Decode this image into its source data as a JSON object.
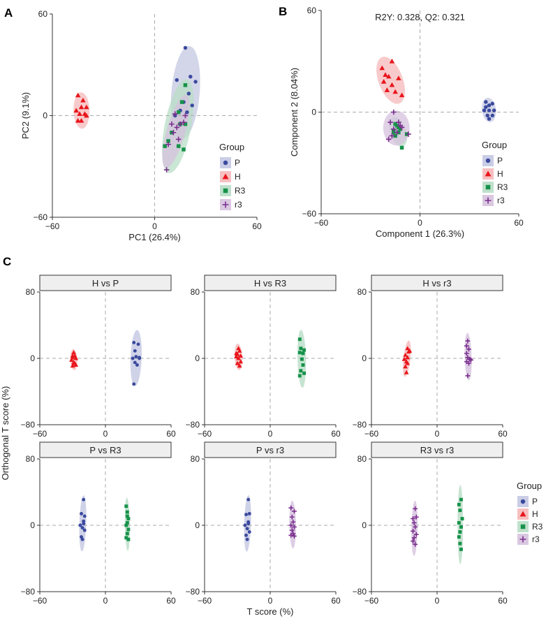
{
  "panel_labels": {
    "a": "A",
    "b": "B",
    "c": "C"
  },
  "colors": {
    "P": "#3B4A9E",
    "P_fill": "#C4C8E2",
    "H": "#E8151B",
    "H_fill": "#F6B8B9",
    "R3": "#16924A",
    "R3_fill": "#B8DDC6",
    "r3": "#7A2E8E",
    "r3_fill": "#D6C2DE"
  },
  "legend": {
    "title": "Group",
    "items": [
      {
        "key": "P",
        "label": "P",
        "shape": "circle-icon"
      },
      {
        "key": "H",
        "label": "H",
        "shape": "triangle-icon"
      },
      {
        "key": "R3",
        "label": "R3",
        "shape": "square-icon"
      },
      {
        "key": "r3",
        "label": "r3",
        "shape": "plus-icon"
      }
    ]
  },
  "chart_data": [
    {
      "id": "A",
      "type": "scatter",
      "title": "",
      "xlabel": "PC1 (26.4%)",
      "ylabel": "PC2 (9.1%)",
      "xlim": [
        -60,
        60
      ],
      "ylim": [
        -60,
        60
      ],
      "xticks": [
        -60,
        0,
        60
      ],
      "yticks": [
        -60,
        0,
        60
      ],
      "series": [
        {
          "name": "P",
          "points": [
            [
              18,
              40
            ],
            [
              21,
              23
            ],
            [
              24,
              20
            ],
            [
              13,
              21
            ],
            [
              20,
              13
            ],
            [
              17,
              8
            ],
            [
              22,
              6
            ],
            [
              15,
              3
            ],
            [
              19,
              2
            ],
            [
              12,
              0
            ]
          ]
        },
        {
          "name": "H",
          "points": [
            [
              -45,
              12
            ],
            [
              -42,
              9
            ],
            [
              -43,
              5
            ],
            [
              -40,
              5
            ],
            [
              -46,
              3
            ],
            [
              -44,
              1
            ],
            [
              -41,
              1
            ],
            [
              -45,
              -3
            ],
            [
              -43,
              -3
            ],
            [
              -40,
              0
            ]
          ]
        },
        {
          "name": "R3",
          "points": [
            [
              18,
              18
            ],
            [
              16,
              8
            ],
            [
              14,
              2
            ],
            [
              15,
              -5
            ],
            [
              10,
              -10
            ],
            [
              8,
              -15
            ],
            [
              6,
              -18
            ],
            [
              14,
              -18
            ],
            [
              17,
              -20
            ],
            [
              18,
              -5
            ]
          ]
        },
        {
          "name": "r3",
          "points": [
            [
              12,
              1
            ],
            [
              18,
              0
            ],
            [
              15,
              -5
            ],
            [
              13,
              -7
            ],
            [
              11,
              -10
            ],
            [
              14,
              -14
            ],
            [
              8,
              -17
            ],
            [
              7,
              -32
            ],
            [
              17,
              -4
            ],
            [
              10,
              -5
            ]
          ]
        }
      ]
    },
    {
      "id": "B",
      "type": "scatter",
      "title": "R2Y: 0.328,  Q2: 0.321",
      "xlabel": "Component 1 (26.3%)",
      "ylabel": "Component 2 (8.04%)",
      "xlim": [
        -60,
        60
      ],
      "ylim": [
        -60,
        60
      ],
      "xticks": [
        -60,
        0,
        60
      ],
      "yticks": [
        -60,
        0,
        60
      ],
      "series": [
        {
          "name": "P",
          "points": [
            [
              40,
              6
            ],
            [
              42,
              4
            ],
            [
              44,
              5
            ],
            [
              39,
              1
            ],
            [
              42,
              1
            ],
            [
              45,
              1
            ],
            [
              41,
              -2
            ],
            [
              44,
              -2
            ],
            [
              42,
              -4
            ],
            [
              40,
              3
            ]
          ]
        },
        {
          "name": "H",
          "points": [
            [
              -23,
              26
            ],
            [
              -17,
              30
            ],
            [
              -19,
              21
            ],
            [
              -13,
              20
            ],
            [
              -22,
              18
            ],
            [
              -20,
              13
            ],
            [
              -17,
              16
            ],
            [
              -15,
              12
            ],
            [
              -11,
              10
            ],
            [
              -21,
              22
            ]
          ]
        },
        {
          "name": "R3",
          "points": [
            [
              -15,
              -7
            ],
            [
              -13,
              -9
            ],
            [
              -16,
              -11
            ],
            [
              -13,
              -12
            ],
            [
              -8,
              -13
            ],
            [
              -15,
              -14
            ],
            [
              -11,
              -21
            ],
            [
              -14,
              -8
            ],
            [
              -12,
              -10
            ],
            [
              -16,
              -12
            ]
          ]
        },
        {
          "name": "r3",
          "points": [
            [
              -16,
              0
            ],
            [
              -18,
              -6
            ],
            [
              -13,
              -6
            ],
            [
              -11,
              -9
            ],
            [
              -16,
              -10
            ],
            [
              -17,
              -14
            ],
            [
              -7,
              -13
            ],
            [
              -14,
              -12
            ],
            [
              -19,
              -16
            ],
            [
              -12,
              -8
            ]
          ]
        }
      ]
    },
    {
      "id": "C-H-vs-P",
      "type": "scatter",
      "title": "H vs P",
      "xlabel": "T score (%)",
      "ylabel": "Orthogonal T score (%)",
      "xlim": [
        -60,
        60
      ],
      "ylim": [
        -80,
        80
      ],
      "xticks": [
        -60,
        0,
        60
      ],
      "yticks": [
        -80,
        0,
        80
      ],
      "series": [
        {
          "name": "H",
          "points": [
            [
              -29,
              7
            ],
            [
              -28,
              3
            ],
            [
              -30,
              1
            ],
            [
              -27,
              0
            ],
            [
              -31,
              -2
            ],
            [
              -29,
              -5
            ],
            [
              -27,
              -8
            ],
            [
              -30,
              -9
            ],
            [
              -28,
              -6
            ],
            [
              -30,
              3
            ]
          ]
        },
        {
          "name": "P",
          "points": [
            [
              26,
              19
            ],
            [
              30,
              17
            ],
            [
              27,
              9
            ],
            [
              28,
              2
            ],
            [
              25,
              0
            ],
            [
              31,
              0
            ],
            [
              27,
              -5
            ],
            [
              29,
              -8
            ],
            [
              26,
              -31
            ],
            [
              31,
              1
            ]
          ]
        }
      ]
    },
    {
      "id": "C-H-vs-R3",
      "type": "scatter",
      "title": "H vs R3",
      "xlabel": "T score (%)",
      "ylabel": "Orthogonal T score (%)",
      "xlim": [
        -60,
        60
      ],
      "ylim": [
        -80,
        80
      ],
      "xticks": [
        -60,
        0,
        60
      ],
      "yticks": [
        -80,
        0,
        80
      ],
      "series": [
        {
          "name": "H",
          "points": [
            [
              -29,
              12
            ],
            [
              -28,
              9
            ],
            [
              -30,
              5
            ],
            [
              -27,
              3
            ],
            [
              -31,
              2
            ],
            [
              -29,
              0
            ],
            [
              -27,
              -4
            ],
            [
              -30,
              -6
            ],
            [
              -28,
              -9
            ],
            [
              -31,
              6
            ]
          ]
        },
        {
          "name": "R3",
          "points": [
            [
              27,
              23
            ],
            [
              31,
              10
            ],
            [
              28,
              12
            ],
            [
              30,
              6
            ],
            [
              27,
              7
            ],
            [
              29,
              -1
            ],
            [
              30,
              -8
            ],
            [
              28,
              -15
            ],
            [
              27,
              -21
            ],
            [
              31,
              -18
            ]
          ]
        }
      ]
    },
    {
      "id": "C-H-vs-r3",
      "type": "scatter",
      "title": "H vs r3",
      "xlabel": "T score (%)",
      "ylabel": "Orthogonal T score (%)",
      "xlim": [
        -60,
        60
      ],
      "ylim": [
        -80,
        80
      ],
      "xticks": [
        -60,
        0,
        60
      ],
      "yticks": [
        -80,
        0,
        80
      ],
      "series": [
        {
          "name": "H",
          "points": [
            [
              -27,
              12
            ],
            [
              -26,
              8
            ],
            [
              -29,
              4
            ],
            [
              -27,
              1
            ],
            [
              -30,
              -1
            ],
            [
              -28,
              -4
            ],
            [
              -29,
              -10
            ],
            [
              -28,
              -17
            ],
            [
              -27,
              -6
            ],
            [
              -25,
              9
            ]
          ]
        },
        {
          "name": "r3",
          "points": [
            [
              28,
              21
            ],
            [
              27,
              15
            ],
            [
              29,
              11
            ],
            [
              27,
              6
            ],
            [
              28,
              1
            ],
            [
              30,
              -1
            ],
            [
              27,
              -4
            ],
            [
              29,
              -6
            ],
            [
              28,
              -21
            ],
            [
              31,
              -2
            ]
          ]
        }
      ]
    },
    {
      "id": "C-P-vs-R3",
      "type": "scatter",
      "title": "P vs R3",
      "xlabel": "T score (%)",
      "ylabel": "Orthogonal T score (%)",
      "xlim": [
        -60,
        60
      ],
      "ylim": [
        -80,
        80
      ],
      "xticks": [
        -60,
        0,
        60
      ],
      "yticks": [
        -80,
        0,
        80
      ],
      "series": [
        {
          "name": "P",
          "points": [
            [
              -20,
              31
            ],
            [
              -22,
              14
            ],
            [
              -19,
              11
            ],
            [
              -20,
              2
            ],
            [
              -23,
              0
            ],
            [
              -21,
              -3
            ],
            [
              -19,
              -6
            ],
            [
              -22,
              -14
            ],
            [
              -21,
              -17
            ],
            [
              -20,
              5
            ]
          ]
        },
        {
          "name": "R3",
          "points": [
            [
              19,
              23
            ],
            [
              20,
              16
            ],
            [
              21,
              8
            ],
            [
              20,
              3
            ],
            [
              19,
              0
            ],
            [
              21,
              -5
            ],
            [
              20,
              -10
            ],
            [
              19,
              -15
            ],
            [
              21,
              -17
            ],
            [
              20,
              11
            ]
          ]
        }
      ]
    },
    {
      "id": "C-P-vs-r3",
      "type": "scatter",
      "title": "P vs r3",
      "xlabel": "T score (%)",
      "ylabel": "Orthogonal T score (%)",
      "xlim": [
        -60,
        60
      ],
      "ylim": [
        -80,
        80
      ],
      "xticks": [
        -60,
        0,
        60
      ],
      "yticks": [
        -80,
        0,
        80
      ],
      "series": [
        {
          "name": "P",
          "points": [
            [
              -20,
              31
            ],
            [
              -19,
              14
            ],
            [
              -22,
              13
            ],
            [
              -20,
              4
            ],
            [
              -23,
              0
            ],
            [
              -21,
              -4
            ],
            [
              -19,
              -8
            ],
            [
              -22,
              -12
            ],
            [
              -21,
              -17
            ],
            [
              -20,
              2
            ]
          ]
        },
        {
          "name": "r3",
          "points": [
            [
              19,
              21
            ],
            [
              22,
              17
            ],
            [
              20,
              10
            ],
            [
              21,
              4
            ],
            [
              19,
              0
            ],
            [
              22,
              -2
            ],
            [
              20,
              -6
            ],
            [
              21,
              -10
            ],
            [
              19,
              -12
            ],
            [
              22,
              -13
            ]
          ]
        }
      ]
    },
    {
      "id": "C-R3-vs-r3",
      "type": "scatter",
      "title": "R3 vs r3",
      "xlabel": "T score (%)",
      "ylabel": "Orthogonal T score (%)",
      "xlim": [
        -60,
        60
      ],
      "ylim": [
        -80,
        80
      ],
      "xticks": [
        -60,
        0,
        60
      ],
      "yticks": [
        -80,
        0,
        80
      ],
      "series": [
        {
          "name": "r3",
          "points": [
            [
              -20,
              20
            ],
            [
              -22,
              8
            ],
            [
              -19,
              10
            ],
            [
              -21,
              3
            ],
            [
              -20,
              -2
            ],
            [
              -22,
              -7
            ],
            [
              -19,
              -11
            ],
            [
              -21,
              -15
            ],
            [
              -20,
              -23
            ],
            [
              -22,
              -19
            ]
          ]
        },
        {
          "name": "R3",
          "points": [
            [
              22,
              31
            ],
            [
              20,
              25
            ],
            [
              21,
              18
            ],
            [
              23,
              8
            ],
            [
              20,
              3
            ],
            [
              22,
              -2
            ],
            [
              21,
              -8
            ],
            [
              20,
              -14
            ],
            [
              22,
              -29
            ],
            [
              21,
              -22
            ]
          ]
        }
      ]
    }
  ]
}
